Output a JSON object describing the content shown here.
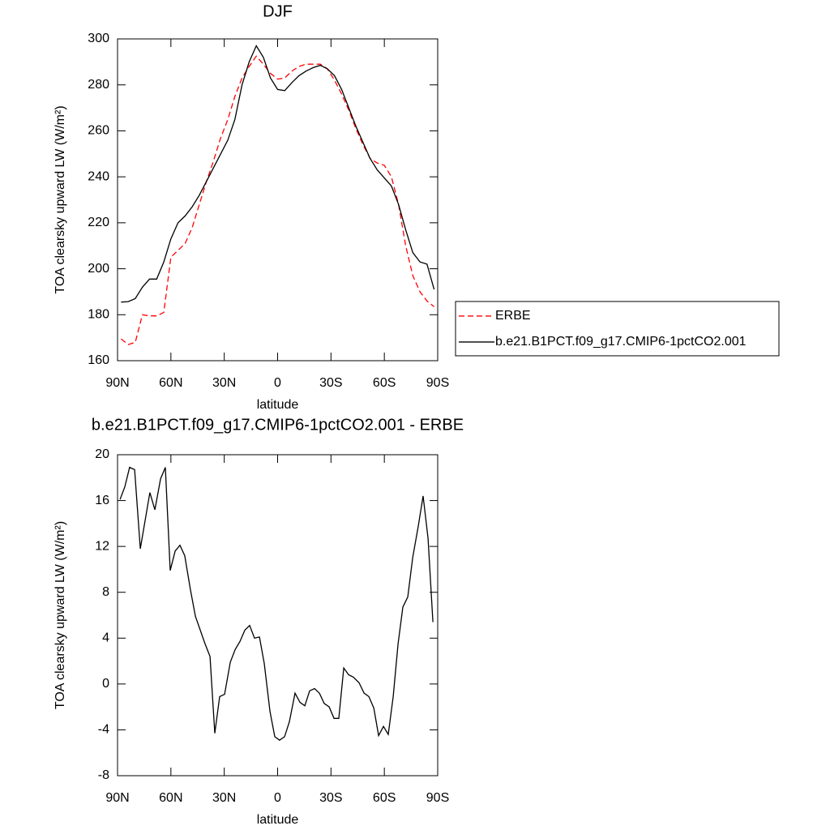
{
  "chart_data": [
    {
      "type": "line",
      "title": "DJF",
      "x_label": "latitude",
      "y_label": "TOA clearsky upward LW (W/m²)",
      "x": [
        88,
        84,
        80,
        76,
        72,
        68,
        64,
        60,
        56,
        52,
        48,
        44,
        40,
        36,
        32,
        28,
        24,
        20,
        16,
        12,
        8,
        4,
        0,
        -4,
        -8,
        -12,
        -16,
        -20,
        -24,
        -28,
        -32,
        -36,
        -40,
        -44,
        -48,
        -52,
        -56,
        -60,
        -64,
        -68,
        -72,
        -76,
        -80,
        -84,
        -88
      ],
      "series": [
        {
          "name": "ERBE",
          "color": "#ff0000",
          "line_style": "dashed",
          "values": [
            169.5,
            167,
            168,
            180,
            179.5,
            179.5,
            181,
            205,
            208,
            211,
            218,
            228,
            238,
            247,
            257,
            265,
            275,
            283,
            288,
            292.5,
            289,
            285,
            282.5,
            283,
            286,
            288,
            289,
            289,
            289,
            287,
            282,
            276,
            269,
            261,
            254,
            248,
            246,
            245,
            240,
            228,
            210,
            197,
            190,
            186,
            183.5
          ]
        },
        {
          "name": "b.e21.B1PCT.f09_g17.CMIP6-1pctCO2.001",
          "color": "#000000",
          "line_style": "solid",
          "values": [
            185.5,
            185.7,
            187,
            192,
            195.5,
            195.5,
            203,
            213,
            220,
            223,
            227,
            232,
            238,
            244,
            250,
            256,
            265,
            280,
            290,
            297,
            292,
            283,
            278,
            277.5,
            281,
            284,
            286,
            287.5,
            288.5,
            287,
            284,
            278,
            270,
            262,
            255,
            248,
            243,
            239.5,
            236,
            228,
            217,
            207,
            203,
            202,
            191
          ]
        }
      ],
      "xlim": [
        90,
        -90
      ],
      "xticks": [
        {
          "value": 90,
          "label": "90N"
        },
        {
          "value": 60,
          "label": "60N"
        },
        {
          "value": 30,
          "label": "30N"
        },
        0,
        {
          "value": -30,
          "label": "30S"
        },
        {
          "value": -60,
          "label": "60S"
        },
        {
          "value": -90,
          "label": "90S"
        }
      ],
      "ylim": [
        160,
        300
      ],
      "yticks": [
        160,
        180,
        200,
        220,
        240,
        260,
        280,
        300
      ],
      "legend": "right"
    },
    {
      "type": "line",
      "title": "b.e21.B1PCT.f09_g17.CMIP6-1pctCO2.001 - ERBE",
      "x_label": "latitude",
      "y_label": "TOA clearsky upward LW (W/m²)",
      "x": [
        88.6,
        85.9,
        83.2,
        80.4,
        77.2,
        71.8,
        69.0,
        65.8,
        63.1,
        60.4,
        57.6,
        54.9,
        52.2,
        49.0,
        46.2,
        40.8,
        38.0,
        35.3,
        32.6,
        29.8,
        26.6,
        23.9,
        21.2,
        18.4,
        15.7,
        13.0,
        10.2,
        7.5,
        4.3,
        1.6,
        -1.1,
        -3.9,
        -6.6,
        -9.8,
        -12.6,
        -15.3,
        -18.0,
        -20.8,
        -23.5,
        -26.2,
        -29.0,
        -31.7,
        -34.4,
        -37.2,
        -39.9,
        -42.6,
        -45.8,
        -48.6,
        -51.3,
        -54.1,
        -56.8,
        -59.5,
        -62.2,
        -65.0,
        -67.7,
        -70.4,
        -73.2,
        -75.9,
        -79.1,
        -81.8,
        -84.6,
        -87.3
      ],
      "values": [
        16.1,
        17.2,
        18.9,
        18.7,
        11.8,
        16.7,
        15.2,
        17.9,
        18.9,
        9.9,
        11.6,
        12.1,
        11.2,
        8.2,
        5.9,
        3.5,
        2.4,
        -4.3,
        -1.1,
        -0.9,
        1.9,
        3.0,
        3.7,
        4.7,
        5.1,
        4.0,
        4.1,
        1.8,
        -2.4,
        -4.6,
        -4.9,
        -4.6,
        -3.3,
        -0.8,
        -1.6,
        -1.9,
        -0.6,
        -0.4,
        -0.8,
        -1.7,
        -2.0,
        -3.0,
        -3.0,
        1.4,
        0.8,
        0.6,
        0.1,
        -0.8,
        -1.1,
        -2.1,
        -4.5,
        -3.7,
        -4.4,
        -1.1,
        3.5,
        6.7,
        7.6,
        11.0,
        13.8,
        16.4,
        12.7,
        5.4
      ],
      "color": "#000000",
      "xlim": [
        90,
        -90
      ],
      "xticks": [
        {
          "value": 90,
          "label": "90N"
        },
        {
          "value": 60,
          "label": "60N"
        },
        {
          "value": 30,
          "label": "30N"
        },
        0,
        {
          "value": -30,
          "label": "30S"
        },
        {
          "value": -60,
          "label": "60S"
        },
        {
          "value": -90,
          "label": "90S"
        }
      ],
      "ylim": [
        -8,
        20
      ],
      "yticks": [
        -8,
        -4,
        0,
        4,
        8,
        12,
        16,
        20
      ]
    }
  ]
}
